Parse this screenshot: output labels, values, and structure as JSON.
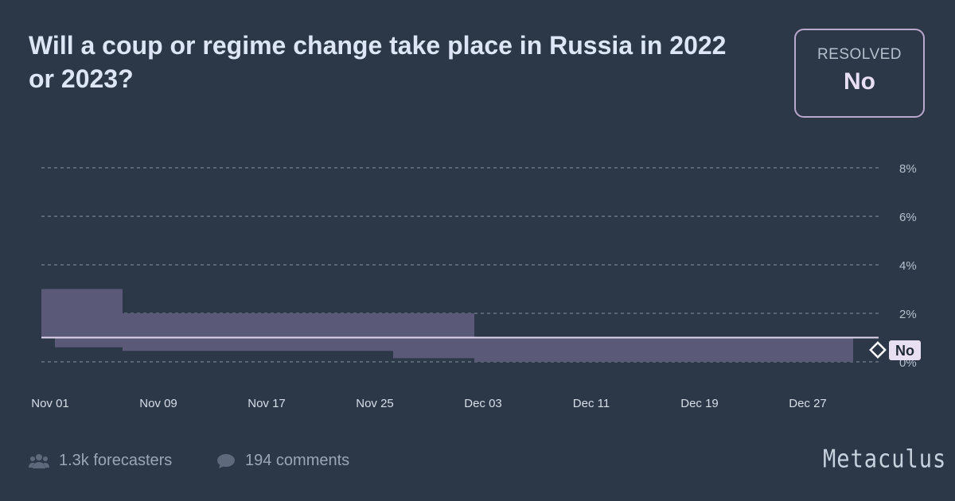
{
  "question": {
    "title": "Will a coup or regime change take place in Russia in 2022 or 2023?"
  },
  "resolution": {
    "label": "RESOLVED",
    "value": "No"
  },
  "chart_data": {
    "type": "area",
    "x_tick_labels": [
      "Nov 01",
      "Nov 09",
      "Nov 17",
      "Nov 25",
      "Dec 03",
      "Dec 11",
      "Dec 19",
      "Dec 27"
    ],
    "y_tick_labels": [
      "0%",
      "2%",
      "4%",
      "6%",
      "8%"
    ],
    "ylim": [
      0,
      8
    ],
    "y_unit": "%",
    "grid": true,
    "series": [
      {
        "median": 1,
        "band": [
          {
            "from": "2022-11-01",
            "to": "2022-11-02",
            "low": 1.0,
            "high": 3.0
          },
          {
            "from": "2022-11-02",
            "to": "2022-11-07",
            "low": 0.6,
            "high": 3.0
          },
          {
            "from": "2022-11-07",
            "to": "2022-11-27",
            "low": 0.45,
            "high": 2.0
          },
          {
            "from": "2022-11-27",
            "to": "2022-12-03",
            "low": 0.15,
            "high": 2.0
          },
          {
            "from": "2022-12-03",
            "to": "2022-12-31",
            "low": 0.0,
            "high": 1.0
          }
        ]
      }
    ],
    "resolution_marker": "No",
    "colors": {
      "band": "#5a5a78",
      "median_line": "#e3d7ef",
      "grid": "#8a93a0"
    }
  },
  "footer": {
    "forecasters": "1.3k forecasters",
    "comments": "194 comments",
    "brand": "Metaculus"
  }
}
